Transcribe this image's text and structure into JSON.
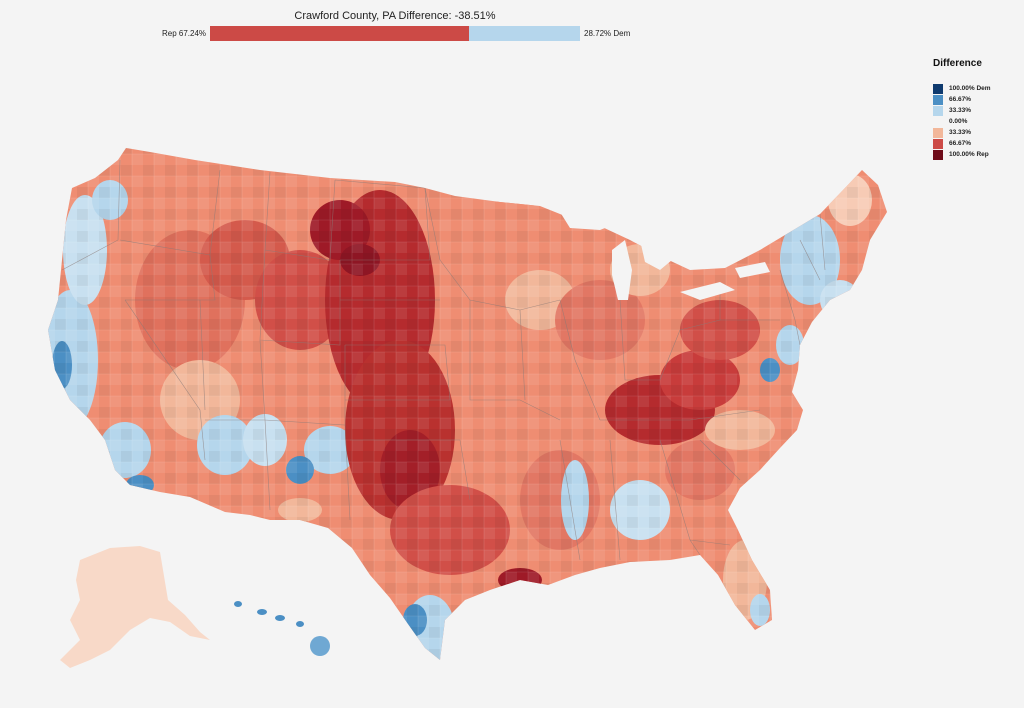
{
  "header": {
    "title": "Crawford County, PA Difference: -38.51%",
    "rep_label": "Rep 67.24%",
    "dem_label": "28.72% Dem",
    "rep_share": 67.24,
    "dem_share": 28.72
  },
  "legend": {
    "title": "Difference",
    "items": [
      {
        "label": "100.00% Dem",
        "color": "#0e3a6e"
      },
      {
        "label": "66.67%",
        "color": "#4b8fc4"
      },
      {
        "label": "33.33%",
        "color": "#b5d6ec"
      },
      {
        "label": "0.00%",
        "color": "#f4f4f4"
      },
      {
        "label": "33.33%",
        "color": "#f2b79a"
      },
      {
        "label": "66.67%",
        "color": "#cc4a46"
      },
      {
        "label": "100.00% Rep",
        "color": "#6e0b19"
      }
    ]
  },
  "map": {
    "colors": {
      "dem_strong": "#0e3a6e",
      "dem_mid": "#4b8fc4",
      "dem_light": "#b5d6ec",
      "neutral": "#f1e7e2",
      "rep_light": "#f2b79a",
      "rep_mid": "#cc4a46",
      "rep_strong": "#6e0b19"
    }
  }
}
